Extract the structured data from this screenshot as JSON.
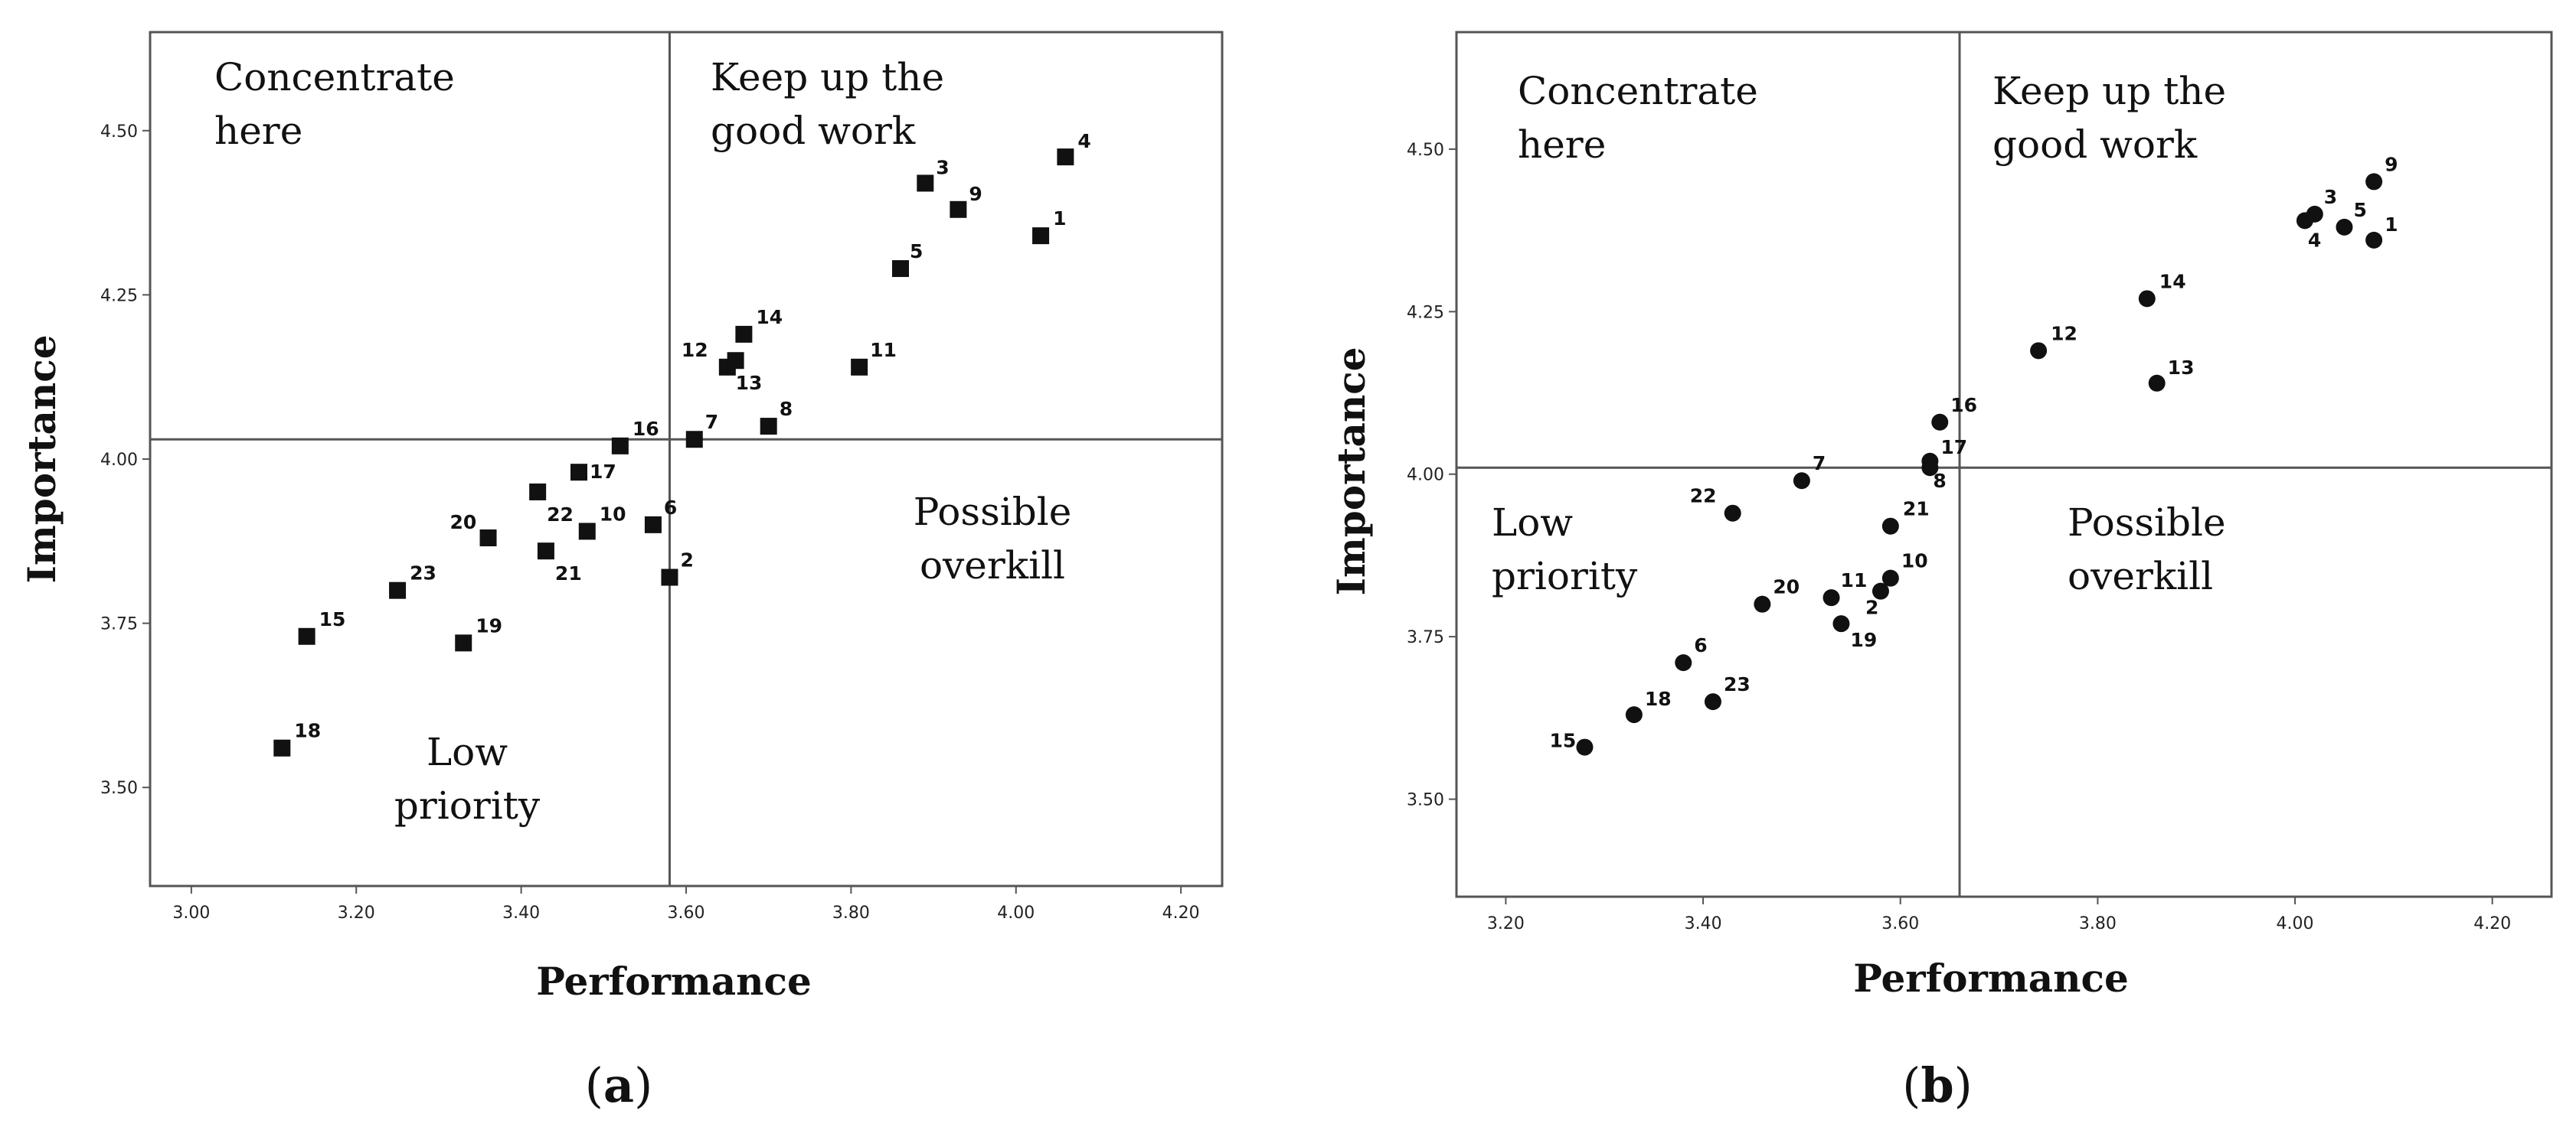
{
  "chart_data": [
    {
      "type": "scatter",
      "panel_label": "a",
      "marker": "square",
      "xlabel": "Performance",
      "ylabel": "Importance",
      "xlim": [
        2.95,
        4.25
      ],
      "ylim": [
        3.35,
        4.65
      ],
      "xticks": [
        "3.00",
        "3.20",
        "3.40",
        "3.60",
        "3.80",
        "4.00",
        "4.20"
      ],
      "xtick_values": [
        3.0,
        3.2,
        3.4,
        3.6,
        3.8,
        4.0,
        4.2
      ],
      "yticks": [
        "3.50",
        "3.75",
        "4.00",
        "4.25",
        "4.50"
      ],
      "ytick_values": [
        3.5,
        3.75,
        4.0,
        4.25,
        4.5
      ],
      "ref_x": 3.58,
      "ref_y": 4.03,
      "quadrants": {
        "top_left": [
          "Concentrate",
          "here"
        ],
        "top_right": [
          "Keep up the",
          "good work"
        ],
        "bottom_left": [
          "Low",
          "priority"
        ],
        "bottom_right": [
          "Possible",
          "overkill"
        ]
      },
      "points": [
        {
          "label": "1",
          "x": 4.03,
          "y": 4.34
        },
        {
          "label": "2",
          "x": 3.58,
          "y": 3.82
        },
        {
          "label": "3",
          "x": 3.89,
          "y": 4.42
        },
        {
          "label": "4",
          "x": 4.06,
          "y": 4.46
        },
        {
          "label": "5",
          "x": 3.86,
          "y": 4.29
        },
        {
          "label": "6",
          "x": 3.56,
          "y": 3.9
        },
        {
          "label": "7",
          "x": 3.61,
          "y": 4.03
        },
        {
          "label": "8",
          "x": 3.7,
          "y": 4.05
        },
        {
          "label": "9",
          "x": 3.93,
          "y": 4.38
        },
        {
          "label": "10",
          "x": 3.48,
          "y": 3.89
        },
        {
          "label": "11",
          "x": 3.81,
          "y": 4.14
        },
        {
          "label": "12",
          "x": 3.65,
          "y": 4.14
        },
        {
          "label": "13",
          "x": 3.66,
          "y": 4.15
        },
        {
          "label": "14",
          "x": 3.67,
          "y": 4.19
        },
        {
          "label": "15",
          "x": 3.14,
          "y": 3.73
        },
        {
          "label": "16",
          "x": 3.52,
          "y": 4.02
        },
        {
          "label": "17",
          "x": 3.47,
          "y": 3.98
        },
        {
          "label": "18",
          "x": 3.11,
          "y": 3.56
        },
        {
          "label": "19",
          "x": 3.33,
          "y": 3.72
        },
        {
          "label": "20",
          "x": 3.36,
          "y": 3.88
        },
        {
          "label": "21",
          "x": 3.43,
          "y": 3.86
        },
        {
          "label": "22",
          "x": 3.42,
          "y": 3.95
        },
        {
          "label": "23",
          "x": 3.25,
          "y": 3.8
        }
      ]
    },
    {
      "type": "scatter",
      "panel_label": "b",
      "marker": "circle",
      "xlabel": "Performance",
      "ylabel": "Importance",
      "xlim": [
        3.15,
        4.26
      ],
      "ylim": [
        3.35,
        4.68
      ],
      "xticks": [
        "3.20",
        "3.40",
        "3.60",
        "3.80",
        "4.00",
        "4.20"
      ],
      "xtick_values": [
        3.2,
        3.4,
        3.6,
        3.8,
        4.0,
        4.2
      ],
      "yticks": [
        "3.50",
        "3.75",
        "4.00",
        "4.25",
        "4.50"
      ],
      "ytick_values": [
        3.5,
        3.75,
        4.0,
        4.25,
        4.5
      ],
      "ref_x": 3.66,
      "ref_y": 4.01,
      "quadrants": {
        "top_left": [
          "Concentrate",
          "here"
        ],
        "top_right": [
          "Keep up the",
          "good work"
        ],
        "bottom_left": [
          "Low",
          "priority"
        ],
        "bottom_right": [
          "Possible",
          "overkill"
        ]
      },
      "points": [
        {
          "label": "1",
          "x": 4.08,
          "y": 4.36
        },
        {
          "label": "2",
          "x": 3.58,
          "y": 3.82
        },
        {
          "label": "3",
          "x": 4.02,
          "y": 4.4
        },
        {
          "label": "4",
          "x": 4.01,
          "y": 4.39
        },
        {
          "label": "5",
          "x": 4.05,
          "y": 4.38
        },
        {
          "label": "6",
          "x": 3.38,
          "y": 3.71
        },
        {
          "label": "7",
          "x": 3.5,
          "y": 3.99
        },
        {
          "label": "8",
          "x": 3.63,
          "y": 4.01
        },
        {
          "label": "9",
          "x": 4.08,
          "y": 4.45
        },
        {
          "label": "10",
          "x": 3.59,
          "y": 3.84
        },
        {
          "label": "11",
          "x": 3.53,
          "y": 3.81
        },
        {
          "label": "12",
          "x": 3.74,
          "y": 4.19
        },
        {
          "label": "13",
          "x": 3.86,
          "y": 4.14
        },
        {
          "label": "14",
          "x": 3.85,
          "y": 4.27
        },
        {
          "label": "15",
          "x": 3.28,
          "y": 3.58
        },
        {
          "label": "16",
          "x": 3.64,
          "y": 4.08
        },
        {
          "label": "17",
          "x": 3.63,
          "y": 4.02
        },
        {
          "label": "18",
          "x": 3.33,
          "y": 3.63
        },
        {
          "label": "19",
          "x": 3.54,
          "y": 3.77
        },
        {
          "label": "20",
          "x": 3.46,
          "y": 3.8
        },
        {
          "label": "21",
          "x": 3.59,
          "y": 3.92
        },
        {
          "label": "22",
          "x": 3.43,
          "y": 3.94
        },
        {
          "label": "23",
          "x": 3.41,
          "y": 3.65
        }
      ]
    }
  ]
}
